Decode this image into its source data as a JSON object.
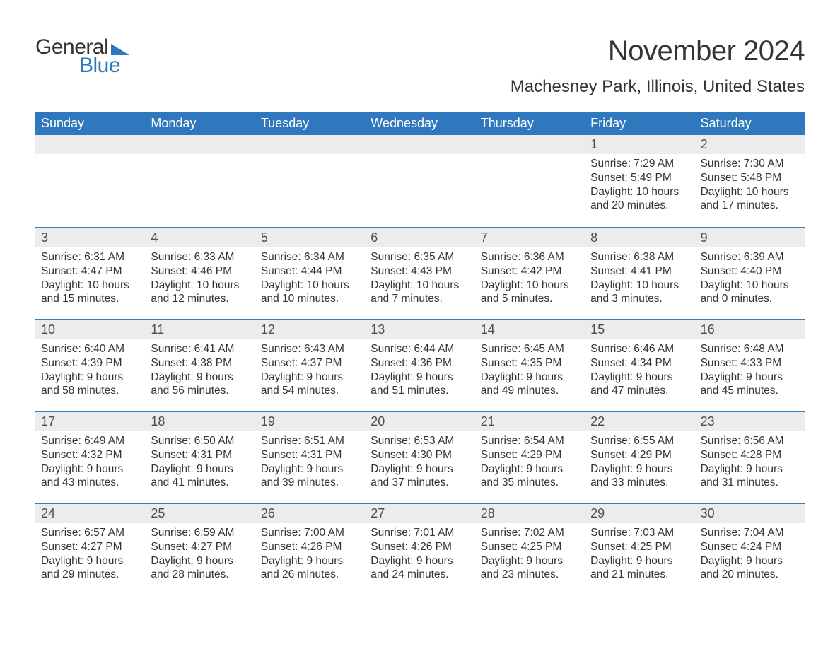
{
  "brand": {
    "word1": "General",
    "word2": "Blue",
    "accent_color": "#2f78bd"
  },
  "title": "November 2024",
  "location": "Machesney Park, Illinois, United States",
  "colors": {
    "header_bg": "#2f78bd",
    "header_text": "#ffffff",
    "daynum_bg": "#ececec",
    "text": "#333333",
    "row_border": "#2f78bd",
    "page_bg": "#ffffff"
  },
  "fonts": {
    "title_size": 40,
    "location_size": 24,
    "weekday_size": 18,
    "daynum_size": 18,
    "body_size": 15.5
  },
  "weekdays": [
    "Sunday",
    "Monday",
    "Tuesday",
    "Wednesday",
    "Thursday",
    "Friday",
    "Saturday"
  ],
  "weeks": [
    [
      null,
      null,
      null,
      null,
      null,
      {
        "n": "1",
        "sunrise": "Sunrise: 7:29 AM",
        "sunset": "Sunset: 5:49 PM",
        "daylight": "Daylight: 10 hours and 20 minutes."
      },
      {
        "n": "2",
        "sunrise": "Sunrise: 7:30 AM",
        "sunset": "Sunset: 5:48 PM",
        "daylight": "Daylight: 10 hours and 17 minutes."
      }
    ],
    [
      {
        "n": "3",
        "sunrise": "Sunrise: 6:31 AM",
        "sunset": "Sunset: 4:47 PM",
        "daylight": "Daylight: 10 hours and 15 minutes."
      },
      {
        "n": "4",
        "sunrise": "Sunrise: 6:33 AM",
        "sunset": "Sunset: 4:46 PM",
        "daylight": "Daylight: 10 hours and 12 minutes."
      },
      {
        "n": "5",
        "sunrise": "Sunrise: 6:34 AM",
        "sunset": "Sunset: 4:44 PM",
        "daylight": "Daylight: 10 hours and 10 minutes."
      },
      {
        "n": "6",
        "sunrise": "Sunrise: 6:35 AM",
        "sunset": "Sunset: 4:43 PM",
        "daylight": "Daylight: 10 hours and 7 minutes."
      },
      {
        "n": "7",
        "sunrise": "Sunrise: 6:36 AM",
        "sunset": "Sunset: 4:42 PM",
        "daylight": "Daylight: 10 hours and 5 minutes."
      },
      {
        "n": "8",
        "sunrise": "Sunrise: 6:38 AM",
        "sunset": "Sunset: 4:41 PM",
        "daylight": "Daylight: 10 hours and 3 minutes."
      },
      {
        "n": "9",
        "sunrise": "Sunrise: 6:39 AM",
        "sunset": "Sunset: 4:40 PM",
        "daylight": "Daylight: 10 hours and 0 minutes."
      }
    ],
    [
      {
        "n": "10",
        "sunrise": "Sunrise: 6:40 AM",
        "sunset": "Sunset: 4:39 PM",
        "daylight": "Daylight: 9 hours and 58 minutes."
      },
      {
        "n": "11",
        "sunrise": "Sunrise: 6:41 AM",
        "sunset": "Sunset: 4:38 PM",
        "daylight": "Daylight: 9 hours and 56 minutes."
      },
      {
        "n": "12",
        "sunrise": "Sunrise: 6:43 AM",
        "sunset": "Sunset: 4:37 PM",
        "daylight": "Daylight: 9 hours and 54 minutes."
      },
      {
        "n": "13",
        "sunrise": "Sunrise: 6:44 AM",
        "sunset": "Sunset: 4:36 PM",
        "daylight": "Daylight: 9 hours and 51 minutes."
      },
      {
        "n": "14",
        "sunrise": "Sunrise: 6:45 AM",
        "sunset": "Sunset: 4:35 PM",
        "daylight": "Daylight: 9 hours and 49 minutes."
      },
      {
        "n": "15",
        "sunrise": "Sunrise: 6:46 AM",
        "sunset": "Sunset: 4:34 PM",
        "daylight": "Daylight: 9 hours and 47 minutes."
      },
      {
        "n": "16",
        "sunrise": "Sunrise: 6:48 AM",
        "sunset": "Sunset: 4:33 PM",
        "daylight": "Daylight: 9 hours and 45 minutes."
      }
    ],
    [
      {
        "n": "17",
        "sunrise": "Sunrise: 6:49 AM",
        "sunset": "Sunset: 4:32 PM",
        "daylight": "Daylight: 9 hours and 43 minutes."
      },
      {
        "n": "18",
        "sunrise": "Sunrise: 6:50 AM",
        "sunset": "Sunset: 4:31 PM",
        "daylight": "Daylight: 9 hours and 41 minutes."
      },
      {
        "n": "19",
        "sunrise": "Sunrise: 6:51 AM",
        "sunset": "Sunset: 4:31 PM",
        "daylight": "Daylight: 9 hours and 39 minutes."
      },
      {
        "n": "20",
        "sunrise": "Sunrise: 6:53 AM",
        "sunset": "Sunset: 4:30 PM",
        "daylight": "Daylight: 9 hours and 37 minutes."
      },
      {
        "n": "21",
        "sunrise": "Sunrise: 6:54 AM",
        "sunset": "Sunset: 4:29 PM",
        "daylight": "Daylight: 9 hours and 35 minutes."
      },
      {
        "n": "22",
        "sunrise": "Sunrise: 6:55 AM",
        "sunset": "Sunset: 4:29 PM",
        "daylight": "Daylight: 9 hours and 33 minutes."
      },
      {
        "n": "23",
        "sunrise": "Sunrise: 6:56 AM",
        "sunset": "Sunset: 4:28 PM",
        "daylight": "Daylight: 9 hours and 31 minutes."
      }
    ],
    [
      {
        "n": "24",
        "sunrise": "Sunrise: 6:57 AM",
        "sunset": "Sunset: 4:27 PM",
        "daylight": "Daylight: 9 hours and 29 minutes."
      },
      {
        "n": "25",
        "sunrise": "Sunrise: 6:59 AM",
        "sunset": "Sunset: 4:27 PM",
        "daylight": "Daylight: 9 hours and 28 minutes."
      },
      {
        "n": "26",
        "sunrise": "Sunrise: 7:00 AM",
        "sunset": "Sunset: 4:26 PM",
        "daylight": "Daylight: 9 hours and 26 minutes."
      },
      {
        "n": "27",
        "sunrise": "Sunrise: 7:01 AM",
        "sunset": "Sunset: 4:26 PM",
        "daylight": "Daylight: 9 hours and 24 minutes."
      },
      {
        "n": "28",
        "sunrise": "Sunrise: 7:02 AM",
        "sunset": "Sunset: 4:25 PM",
        "daylight": "Daylight: 9 hours and 23 minutes."
      },
      {
        "n": "29",
        "sunrise": "Sunrise: 7:03 AM",
        "sunset": "Sunset: 4:25 PM",
        "daylight": "Daylight: 9 hours and 21 minutes."
      },
      {
        "n": "30",
        "sunrise": "Sunrise: 7:04 AM",
        "sunset": "Sunset: 4:24 PM",
        "daylight": "Daylight: 9 hours and 20 minutes."
      }
    ]
  ]
}
